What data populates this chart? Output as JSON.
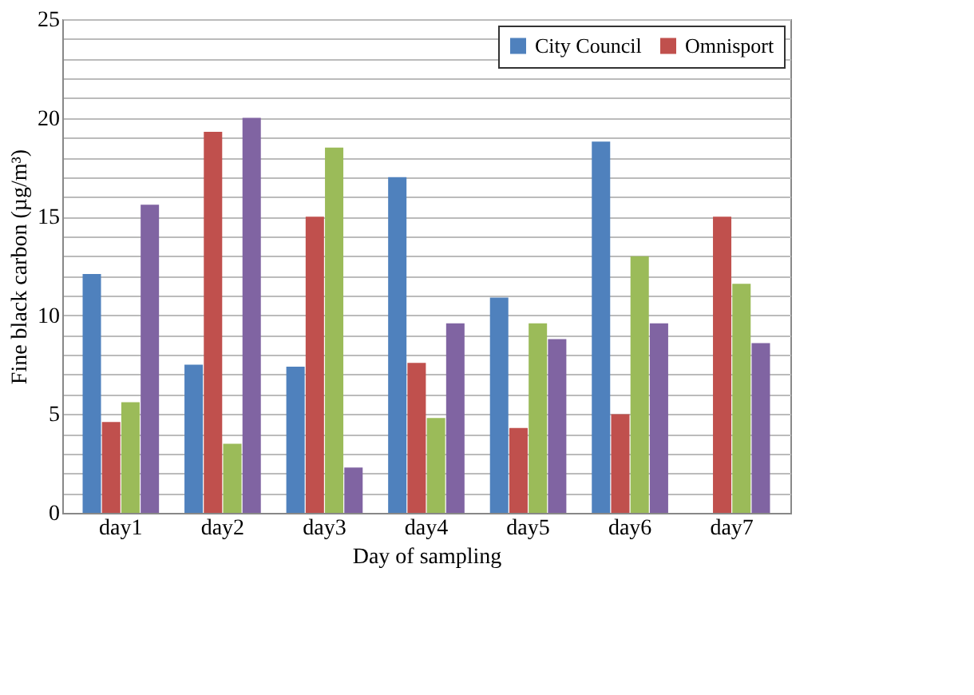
{
  "chart_data": {
    "type": "bar",
    "xlabel": "Day of sampling",
    "ylabel": "Fine black carbon (µg/m³)",
    "categories": [
      "day1",
      "day2",
      "day3",
      "day4",
      "day5",
      "day6",
      "day7"
    ],
    "series": [
      {
        "name": "City Council",
        "color": "#4f81bd",
        "values": [
          12.1,
          7.5,
          7.4,
          17,
          10.9,
          18.8,
          null
        ]
      },
      {
        "name": "Omnisport",
        "color": "#c0504d",
        "values": [
          4.6,
          19.3,
          15,
          7.6,
          4.3,
          5,
          15
        ]
      },
      {
        "color": "#9bbb59",
        "values": [
          5.6,
          3.5,
          18.5,
          4.8,
          9.6,
          13,
          11.6
        ]
      },
      {
        "color": "#8064a2",
        "values": [
          15.6,
          20,
          2.3,
          9.6,
          8.8,
          9.6,
          8.6
        ]
      }
    ],
    "ylim": [
      0,
      25
    ],
    "yticks": [
      0,
      {
        "value": 1,
        "label": null
      },
      {
        "value": 2,
        "label": null
      },
      {
        "value": 3,
        "label": null
      },
      {
        "value": 4,
        "label": null
      },
      5,
      {
        "value": 6,
        "label": null
      },
      {
        "value": 7,
        "label": null
      },
      {
        "value": 8,
        "label": null
      },
      {
        "value": 9,
        "label": null
      },
      10,
      {
        "value": 11,
        "label": null
      },
      {
        "value": 12,
        "label": null
      },
      {
        "value": 13,
        "label": null
      },
      {
        "value": 14,
        "label": null
      },
      15,
      {
        "value": 16,
        "label": null
      },
      {
        "value": 17,
        "label": null
      },
      {
        "value": 18,
        "label": null
      },
      {
        "value": 19,
        "label": null
      },
      20,
      {
        "value": 21,
        "label": null
      },
      {
        "value": 22,
        "label": null
      },
      {
        "value": 23,
        "label": null
      },
      {
        "value": 24,
        "label": null
      },
      25
    ],
    "grid": "y",
    "legend": "top right"
  }
}
